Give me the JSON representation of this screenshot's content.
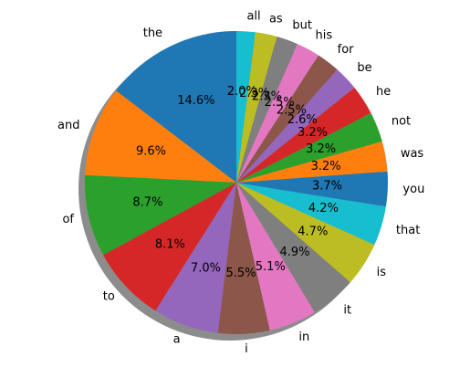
{
  "chart_data": {
    "type": "pie",
    "labels": [
      "the",
      "and",
      "of",
      "to",
      "a",
      "i",
      "in",
      "it",
      "is",
      "that",
      "you",
      "was",
      "not",
      "he",
      "be",
      "for",
      "his",
      "but",
      "as",
      "all"
    ],
    "values": [
      14.6,
      9.6,
      8.7,
      8.1,
      7.0,
      5.5,
      5.1,
      4.9,
      4.7,
      4.2,
      3.7,
      3.2,
      3.2,
      3.2,
      2.6,
      2.5,
      2.5,
      2.3,
      2.3,
      2.0
    ],
    "pct_labels": [
      "14.6%",
      "9.6%",
      "8.7%",
      "8.1%",
      "7.0%",
      "5.5%",
      "5.1%",
      "4.9%",
      "4.7%",
      "4.2%",
      "3.7%",
      "3.2%",
      "3.2%",
      "3.2%",
      "2.6%",
      "2.5%",
      "2.5%",
      "2.3%",
      "2.3%",
      "2.0%"
    ],
    "colors": [
      "#1f77b4",
      "#ff7f0e",
      "#2ca02c",
      "#d62728",
      "#9467bd",
      "#8c564b",
      "#e377c2",
      "#7f7f7f",
      "#bcbd22",
      "#17becf",
      "#1f77b4",
      "#ff7f0e",
      "#2ca02c",
      "#d62728",
      "#9467bd",
      "#8c564b",
      "#e377c2",
      "#7f7f7f",
      "#bcbd22",
      "#17becf"
    ],
    "shadow": true,
    "direction": "counterclockwise"
  }
}
